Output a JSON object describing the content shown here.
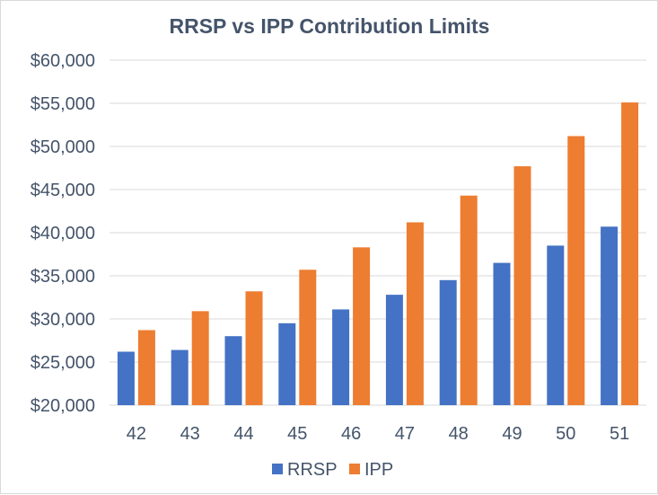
{
  "chart_data": {
    "type": "bar",
    "title": "RRSP vs IPP Contribution Limits",
    "xlabel": "",
    "ylabel": "",
    "categories": [
      "42",
      "43",
      "44",
      "45",
      "46",
      "47",
      "48",
      "49",
      "50",
      "51"
    ],
    "series": [
      {
        "name": "RRSP",
        "color": "#4472c4",
        "values": [
          26200,
          26400,
          28000,
          29500,
          31100,
          32800,
          34500,
          36500,
          38500,
          40700
        ]
      },
      {
        "name": "IPP",
        "color": "#ed7d31",
        "values": [
          28700,
          30900,
          33200,
          35700,
          38300,
          41200,
          44300,
          47700,
          51200,
          55100
        ]
      }
    ],
    "ylim": [
      20000,
      60000
    ],
    "yticks": [
      "$20,000",
      "$25,000",
      "$30,000",
      "$35,000",
      "$40,000",
      "$45,000",
      "$50,000",
      "$55,000",
      "$60,000"
    ],
    "grid": true,
    "legend_position": "bottom"
  }
}
